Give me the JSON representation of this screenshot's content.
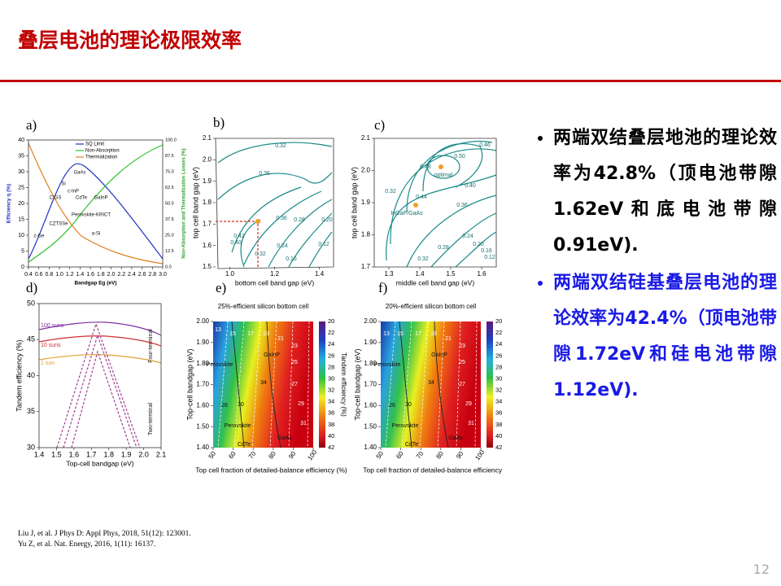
{
  "header": {
    "title": "叠层电池的理论极限效率"
  },
  "figures": [
    {
      "label": "a)",
      "xlabel": "Bandgap Eg (eV)",
      "ylabel": "Efficiency η (%)",
      "y2label": "Non-Absorption and Thermalization Losses (%)",
      "xticks": [
        "0.4",
        "0.6",
        "0.8",
        "1.0",
        "1.2",
        "1.4",
        "1.6",
        "1.8",
        "2.0",
        "2.2",
        "2.4",
        "2.6",
        "2.8",
        "3.0"
      ],
      "yticks": [
        "0",
        "5",
        "10",
        "15",
        "20",
        "25",
        "30",
        "35",
        "40"
      ],
      "y2ticks": [
        "0.0",
        "12.5",
        "25.0",
        "37.5",
        "50.0",
        "62.5",
        "75.0",
        "87.5",
        "100.0"
      ],
      "legend": [
        "SQ Limit",
        "Non-Absorption",
        "Thermalization"
      ],
      "annotations": [
        "GaAs",
        "Si",
        "c-InP",
        "CIGS",
        "CdTe",
        "GaInP",
        "Perovskite-KRICT",
        "CZTSSe",
        "a-Si",
        "c-Ge"
      ]
    },
    {
      "label": "b)",
      "xlabel": "bottom cell band gap (eV)",
      "ylabel": "top cell band gap (eV)",
      "xticks": [
        "1.0",
        "1.2",
        "1.4"
      ],
      "yticks": [
        "1.5",
        "1.6",
        "1.7",
        "1.8",
        "1.9",
        "2.0",
        "2.1"
      ],
      "annotations": [
        "0.32",
        "0.36",
        "0.36",
        "0.28",
        "0.20",
        "0.24",
        "0.16",
        "0.12",
        "0.40",
        "0.42",
        "0.32"
      ]
    },
    {
      "label": "c)",
      "xlabel": "middle cell band gap (eV)",
      "ylabel": "top cell band gap (eV)",
      "xticks": [
        "1.3",
        "1.4",
        "1.5",
        "1.6"
      ],
      "yticks": [
        "1.7",
        "1.8",
        "1.9",
        "2.0",
        "2.1"
      ],
      "annotations": [
        "optimal",
        "InGaP/GaAs",
        "0.50",
        "0.48",
        "0.46",
        "0.44",
        "0.40",
        "0.36",
        "0.32",
        "0.28",
        "0.24",
        "0.20",
        "0.16",
        "0.12",
        "0.32"
      ]
    },
    {
      "label": "d)",
      "xlabel": "Top-cell bandgap (eV)",
      "ylabel": "Tandem efficiency (%)",
      "xticks": [
        "1.4",
        "1.5",
        "1.6",
        "1.7",
        "1.8",
        "1.9",
        "2.0",
        "2.1"
      ],
      "yticks": [
        "30",
        "35",
        "40",
        "45",
        "50"
      ],
      "legend": [
        "100 suns",
        "10 suns",
        "1 sun"
      ],
      "annotations": [
        "Four-terminal",
        "Two-terminal"
      ]
    },
    {
      "label": "e)",
      "title": "25%-efficient silicon bottom cell",
      "xlabel": "Top cell fraction of detailed-balance efficiency (%)",
      "ylabel": "Top-cell bandgap (eV)",
      "cbarlabel": "Tandem efficiency (%)",
      "xticks": [
        "50",
        "60",
        "70",
        "80",
        "90",
        "100"
      ],
      "yticks": [
        "1.40",
        "1.50",
        "1.60",
        "1.70",
        "1.80",
        "1.90",
        "2.00"
      ],
      "cbarticks": [
        "20",
        "22",
        "24",
        "26",
        "28",
        "30",
        "32",
        "34",
        "36",
        "38",
        "40",
        "42"
      ],
      "annotations": [
        "13",
        "15",
        "17",
        "19",
        "21",
        "23",
        "25",
        "27",
        "29",
        "31",
        "26",
        "30",
        "34",
        "Perovskite",
        "GaInP",
        "Perovskite",
        "CdTe",
        "GaAs"
      ]
    },
    {
      "label": "f)",
      "title": "20%-efficient silicon bottom cell",
      "xlabel": "Top cell fraction of detailed-balance efficiency (%)",
      "ylabel": "Top-cell bandgap (eV)",
      "cbarlabel": "Tandem efficiency (%)",
      "xticks": [
        "50",
        "60",
        "70",
        "80",
        "90",
        "100"
      ],
      "yticks": [
        "1.40",
        "1.50",
        "1.60",
        "1.70",
        "1.80",
        "1.90",
        "2.00"
      ],
      "cbarticks": [
        "20",
        "22",
        "24",
        "26",
        "28",
        "30",
        "32",
        "34",
        "36",
        "38",
        "40",
        "42"
      ],
      "annotations": [
        "13",
        "15",
        "17",
        "19",
        "21",
        "23",
        "25",
        "27",
        "29",
        "31",
        "26",
        "30",
        "34",
        "Perovskite",
        "GaInP",
        "Perovskite",
        "CdTe",
        "GaAs"
      ]
    }
  ],
  "bullets": [
    "两端双结叠层地池的理论效率为42.8%（顶电池带隙1.62eV和底电池带隙0.91eV).",
    "两端双结硅基叠层电池的理论效率为42.4%（顶电池带隙1.72eV和硅电池带隙1.12eV)."
  ],
  "references": [
    "Liu J, et al. J Phys D: Appl Phys, 2018, 51(12): 123001.",
    "Yu Z, et al. Nat. Energy, 2016, 1(11): 16137."
  ],
  "page_number": "12"
}
